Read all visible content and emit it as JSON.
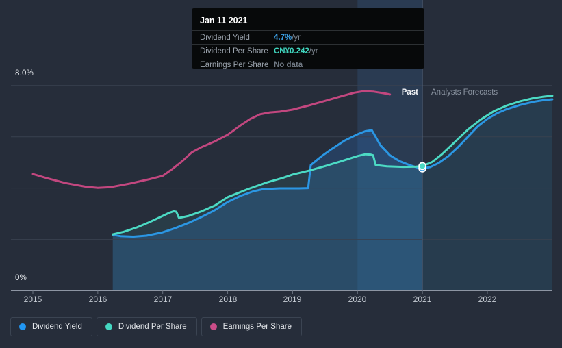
{
  "tooltip": {
    "date": "Jan 11 2021",
    "rows": [
      {
        "label": "Dividend Yield",
        "value": "4.7%",
        "unit": " /yr",
        "value_color": "#3b9fe3"
      },
      {
        "label": "Dividend Per Share",
        "value": "CN¥0.242",
        "unit": " /yr",
        "value_color": "#40d6bf"
      },
      {
        "label": "Earnings Per Share",
        "value": "No data",
        "unit": "",
        "value_color": "#717a85"
      }
    ]
  },
  "axis": {
    "y_top": "8.0%",
    "y_bottom": "0%",
    "years": [
      "2015",
      "2016",
      "2017",
      "2018",
      "2019",
      "2020",
      "2021",
      "2022"
    ]
  },
  "annotations": {
    "past": "Past",
    "forecasts": "Analysts Forecasts"
  },
  "legend": [
    {
      "label": "Dividend Yield",
      "color": "#2196f3"
    },
    {
      "label": "Dividend Per Share",
      "color": "#45d8c2"
    },
    {
      "label": "Earnings Per Share",
      "color": "#cb4d89"
    }
  ],
  "colors": {
    "background": "#262d3a",
    "gridline": "#39414f",
    "axis_line": "#8d95a3",
    "tick": "#6a7280",
    "forecast_divider": "#4d5e77",
    "highlight_band": "rgba(66,135,214,0.16)",
    "blue_line": "#2b97e4",
    "teal_line": "#4cdac4",
    "pink_line": "#c2477f",
    "past_blue_fill": "rgba(41,117,199,0.26)",
    "past_teal_fill": "rgba(66,196,182,0.10)",
    "forecast_blue_fill": "rgba(41,117,199,0.10)",
    "forecast_teal_fill": "rgba(66,196,182,0.06)",
    "marker_stroke": "#ffffff"
  },
  "chart_data": {
    "type": "line",
    "x_range": [
      2015,
      2023
    ],
    "ylim": [
      0,
      8
    ],
    "y_unit": "%",
    "gridline_values": [
      2,
      4,
      6,
      8
    ],
    "past_until": 2021,
    "highlight_band_x": [
      2020,
      2021
    ],
    "legend_position": "bottom-left",
    "marker_points": [
      {
        "series": "Dividend Yield",
        "x": 2021,
        "y": 4.77
      },
      {
        "series": "Dividend Per Share",
        "x": 2021,
        "y": 4.86
      }
    ],
    "series": [
      {
        "name": "Earnings Per Share",
        "color": "#c2477f",
        "fill": false,
        "points": [
          [
            2015.0,
            4.55
          ],
          [
            2015.2,
            4.4
          ],
          [
            2015.5,
            4.2
          ],
          [
            2015.8,
            4.06
          ],
          [
            2016.0,
            4.01
          ],
          [
            2016.2,
            4.04
          ],
          [
            2016.5,
            4.18
          ],
          [
            2016.8,
            4.35
          ],
          [
            2017.0,
            4.48
          ],
          [
            2017.15,
            4.75
          ],
          [
            2017.3,
            5.05
          ],
          [
            2017.45,
            5.4
          ],
          [
            2017.6,
            5.6
          ],
          [
            2017.8,
            5.82
          ],
          [
            2018.0,
            6.08
          ],
          [
            2018.2,
            6.45
          ],
          [
            2018.35,
            6.7
          ],
          [
            2018.5,
            6.88
          ],
          [
            2018.65,
            6.95
          ],
          [
            2018.8,
            6.98
          ],
          [
            2019.0,
            7.06
          ],
          [
            2019.25,
            7.22
          ],
          [
            2019.5,
            7.4
          ],
          [
            2019.75,
            7.58
          ],
          [
            2019.95,
            7.72
          ],
          [
            2020.1,
            7.78
          ],
          [
            2020.25,
            7.76
          ],
          [
            2020.4,
            7.7
          ],
          [
            2020.5,
            7.65
          ]
        ]
      },
      {
        "name": "Dividend Yield",
        "color": "#2b97e4",
        "fill": true,
        "points": [
          [
            2016.23,
            2.18
          ],
          [
            2016.35,
            2.13
          ],
          [
            2016.55,
            2.11
          ],
          [
            2016.75,
            2.15
          ],
          [
            2017.0,
            2.28
          ],
          [
            2017.2,
            2.45
          ],
          [
            2017.4,
            2.65
          ],
          [
            2017.6,
            2.88
          ],
          [
            2017.8,
            3.14
          ],
          [
            2018.0,
            3.46
          ],
          [
            2018.2,
            3.7
          ],
          [
            2018.4,
            3.88
          ],
          [
            2018.55,
            3.96
          ],
          [
            2018.8,
            3.99
          ],
          [
            2019.1,
            3.99
          ],
          [
            2019.24,
            4.0
          ],
          [
            2019.28,
            4.9
          ],
          [
            2019.45,
            5.25
          ],
          [
            2019.6,
            5.52
          ],
          [
            2019.8,
            5.85
          ],
          [
            2020.0,
            6.1
          ],
          [
            2020.12,
            6.22
          ],
          [
            2020.22,
            6.26
          ],
          [
            2020.28,
            6.0
          ],
          [
            2020.35,
            5.68
          ],
          [
            2020.5,
            5.28
          ],
          [
            2020.65,
            5.05
          ],
          [
            2020.8,
            4.9
          ],
          [
            2020.95,
            4.78
          ],
          [
            2021.0,
            4.77
          ],
          [
            2021.12,
            4.82
          ],
          [
            2021.25,
            4.98
          ],
          [
            2021.4,
            5.25
          ],
          [
            2021.55,
            5.6
          ],
          [
            2021.7,
            6.0
          ],
          [
            2021.85,
            6.4
          ],
          [
            2022.0,
            6.7
          ],
          [
            2022.15,
            6.92
          ],
          [
            2022.3,
            7.08
          ],
          [
            2022.5,
            7.24
          ],
          [
            2022.7,
            7.36
          ],
          [
            2022.85,
            7.42
          ],
          [
            2023.0,
            7.46
          ]
        ]
      },
      {
        "name": "Dividend Per Share",
        "color": "#4cdac4",
        "fill": true,
        "points": [
          [
            2016.23,
            2.2
          ],
          [
            2016.4,
            2.3
          ],
          [
            2016.6,
            2.47
          ],
          [
            2016.8,
            2.68
          ],
          [
            2017.0,
            2.92
          ],
          [
            2017.1,
            3.04
          ],
          [
            2017.17,
            3.1
          ],
          [
            2017.21,
            3.08
          ],
          [
            2017.25,
            2.84
          ],
          [
            2017.4,
            2.92
          ],
          [
            2017.6,
            3.1
          ],
          [
            2017.8,
            3.32
          ],
          [
            2018.0,
            3.65
          ],
          [
            2018.3,
            3.95
          ],
          [
            2018.6,
            4.22
          ],
          [
            2018.85,
            4.4
          ],
          [
            2019.0,
            4.53
          ],
          [
            2019.25,
            4.68
          ],
          [
            2019.5,
            4.86
          ],
          [
            2019.75,
            5.05
          ],
          [
            2020.0,
            5.25
          ],
          [
            2020.12,
            5.32
          ],
          [
            2020.2,
            5.31
          ],
          [
            2020.24,
            5.28
          ],
          [
            2020.28,
            4.9
          ],
          [
            2020.45,
            4.85
          ],
          [
            2020.7,
            4.83
          ],
          [
            2020.9,
            4.84
          ],
          [
            2021.0,
            4.86
          ],
          [
            2021.15,
            5.02
          ],
          [
            2021.3,
            5.32
          ],
          [
            2021.5,
            5.8
          ],
          [
            2021.7,
            6.28
          ],
          [
            2021.9,
            6.68
          ],
          [
            2022.1,
            7.0
          ],
          [
            2022.3,
            7.22
          ],
          [
            2022.5,
            7.38
          ],
          [
            2022.7,
            7.5
          ],
          [
            2022.85,
            7.56
          ],
          [
            2023.0,
            7.6
          ]
        ]
      }
    ]
  }
}
